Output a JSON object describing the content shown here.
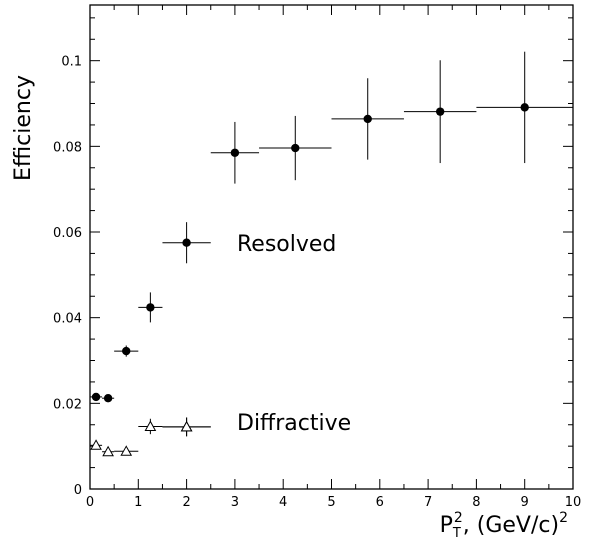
{
  "chart_data": {
    "type": "scatter",
    "ylabel": "Efficiency",
    "xlabel_parts": {
      "base": "P",
      "sub": "T",
      "sup": "2",
      "rest": ", (GeV/c)",
      "rest_sup": "2"
    },
    "xlim": [
      0,
      10
    ],
    "ylim": [
      0,
      0.113
    ],
    "xticks": [
      0,
      1,
      2,
      3,
      4,
      5,
      6,
      7,
      8,
      9,
      10
    ],
    "xtick_labels": [
      "0",
      "1",
      "2",
      "3",
      "4",
      "5",
      "6",
      "7",
      "8",
      "9",
      "10"
    ],
    "yticks": [
      0,
      0.02,
      0.04,
      0.06,
      0.08,
      0.1
    ],
    "ytick_labels": [
      "0",
      "0.02",
      "0.04",
      "0.06",
      "0.08",
      "0.1"
    ],
    "grid": false,
    "legend_placement": "inside, center-left",
    "series": [
      {
        "name": "Resolved",
        "marker": "filled-circle",
        "color": "#000000",
        "points": [
          {
            "x": 0.125,
            "y": 0.0215,
            "xerr": 0.125,
            "yerr": 0.0008
          },
          {
            "x": 0.375,
            "y": 0.0212,
            "xerr": 0.125,
            "yerr": 0.0008
          },
          {
            "x": 0.75,
            "y": 0.0322,
            "xerr": 0.25,
            "yerr": 0.0013
          },
          {
            "x": 1.25,
            "y": 0.0424,
            "xerr": 0.25,
            "yerr": 0.0035
          },
          {
            "x": 3.0,
            "y": 0.0785,
            "xerr": 0.5,
            "yerr": 0.0072
          },
          {
            "x": 4.25,
            "y": 0.0796,
            "xerr": 0.75,
            "yerr": 0.0075
          },
          {
            "x": 5.75,
            "y": 0.0864,
            "xerr": 0.75,
            "yerr": 0.0095
          },
          {
            "x": 7.25,
            "y": 0.0881,
            "xerr": 0.75,
            "yerr": 0.012
          },
          {
            "x": 9.0,
            "y": 0.0891,
            "xerr": 1.0,
            "yerr": 0.013
          }
        ]
      },
      {
        "name": "Diffractive",
        "marker": "open-triangle",
        "color": "#000000",
        "points": [
          {
            "x": 0.125,
            "y": 0.0102,
            "xerr": 0.125,
            "yerr": 0.0005
          },
          {
            "x": 0.375,
            "y": 0.0087,
            "xerr": 0.125,
            "yerr": 0.0005
          },
          {
            "x": 0.75,
            "y": 0.0088,
            "xerr": 0.25,
            "yerr": 0.0006
          },
          {
            "x": 1.25,
            "y": 0.0146,
            "xerr": 0.25,
            "yerr": 0.0018
          },
          {
            "x": 2.0,
            "y": 0.0145,
            "xerr": 0.5,
            "yerr": 0.0022
          }
        ]
      }
    ],
    "legend": [
      {
        "label": "Resolved",
        "marker": "filled-circle",
        "x": 2.0,
        "y": 0.0575,
        "xerr": 0.5,
        "yerr": 0.0048
      },
      {
        "label": "Diffractive",
        "marker": "open-triangle",
        "x": 2.0,
        "y": 0.0145,
        "xerr": 0.5,
        "yerr": 0.0022
      }
    ]
  }
}
